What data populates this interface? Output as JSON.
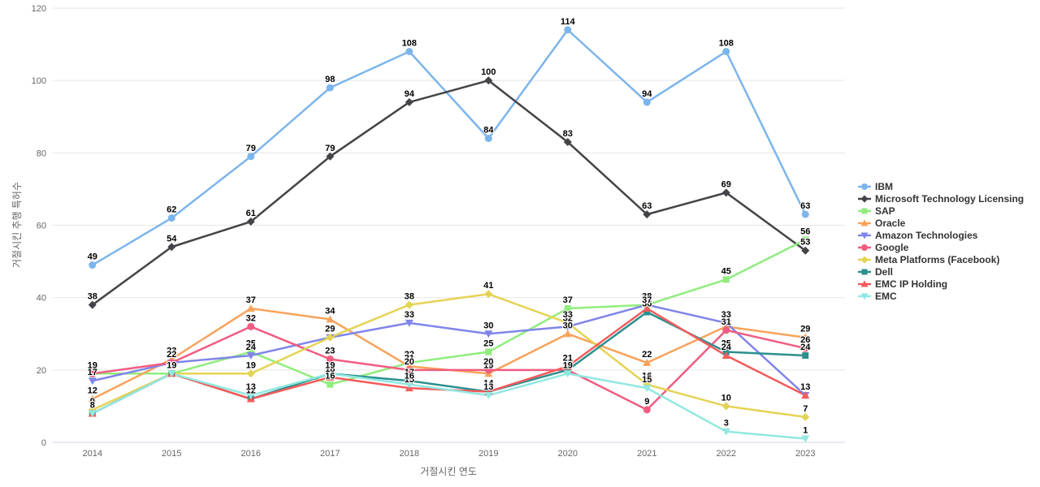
{
  "chart_data": {
    "type": "line",
    "title": "",
    "xlabel": "거절시킨 연도",
    "ylabel": "거절시킨 추행 특허수",
    "categories": [
      "2014",
      "2015",
      "2016",
      "2017",
      "2018",
      "2019",
      "2020",
      "2021",
      "2022",
      "2023"
    ],
    "ylim": [
      0,
      120
    ],
    "yticks": [
      0,
      20,
      40,
      60,
      80,
      100,
      120
    ],
    "grid": true,
    "data_labels": true,
    "legend_position": "right",
    "series": [
      {
        "name": "IBM",
        "color": "#7cb5ec",
        "marker": "circle",
        "values": [
          49,
          62,
          79,
          98,
          108,
          84,
          114,
          94,
          108,
          63
        ]
      },
      {
        "name": "Microsoft Technology Licensing",
        "color": "#434348",
        "marker": "diamond",
        "values": [
          38,
          54,
          61,
          79,
          94,
          100,
          83,
          63,
          69,
          53
        ]
      },
      {
        "name": "SAP",
        "color": "#90ed7d",
        "marker": "square",
        "values": [
          19,
          19,
          25,
          16,
          22,
          25,
          37,
          38,
          45,
          56
        ]
      },
      {
        "name": "Oracle",
        "color": "#f7a35c",
        "marker": "triangle",
        "values": [
          12,
          23,
          37,
          34,
          21,
          19,
          30,
          22,
          32,
          29
        ]
      },
      {
        "name": "Amazon Technologies",
        "color": "#8085e9",
        "marker": "triangle-down",
        "values": [
          17,
          22,
          24,
          29,
          33,
          30,
          32,
          38,
          33,
          13
        ]
      },
      {
        "name": "Google",
        "color": "#f15c80",
        "marker": "circle",
        "values": [
          19,
          22,
          32,
          23,
          20,
          20,
          20,
          9,
          31,
          26
        ]
      },
      {
        "name": "Meta Platforms (Facebook)",
        "color": "#e4d354",
        "marker": "diamond",
        "values": [
          9,
          19,
          19,
          29,
          38,
          41,
          33,
          16,
          10,
          7
        ]
      },
      {
        "name": "Dell",
        "color": "#2b908f",
        "marker": "square",
        "values": [
          8,
          19,
          12,
          19,
          17,
          14,
          20,
          36,
          25,
          24
        ]
      },
      {
        "name": "EMC IP Holding",
        "color": "#f45b5b",
        "marker": "triangle",
        "values": [
          8,
          19,
          12,
          18,
          15,
          14,
          21,
          37,
          24,
          13
        ]
      },
      {
        "name": "EMC",
        "color": "#91e8e1",
        "marker": "triangle-down",
        "values": [
          8,
          19,
          13,
          19,
          16,
          13,
          19,
          15,
          3,
          1
        ]
      }
    ],
    "styles": {
      "grid_color": "#e6e6e6",
      "axis_line_color": "#ccd6eb",
      "tick_label_color": "#666666",
      "axis_title_color": "#666666",
      "data_label_color": "#000000",
      "legend_text_color": "#333333"
    }
  }
}
